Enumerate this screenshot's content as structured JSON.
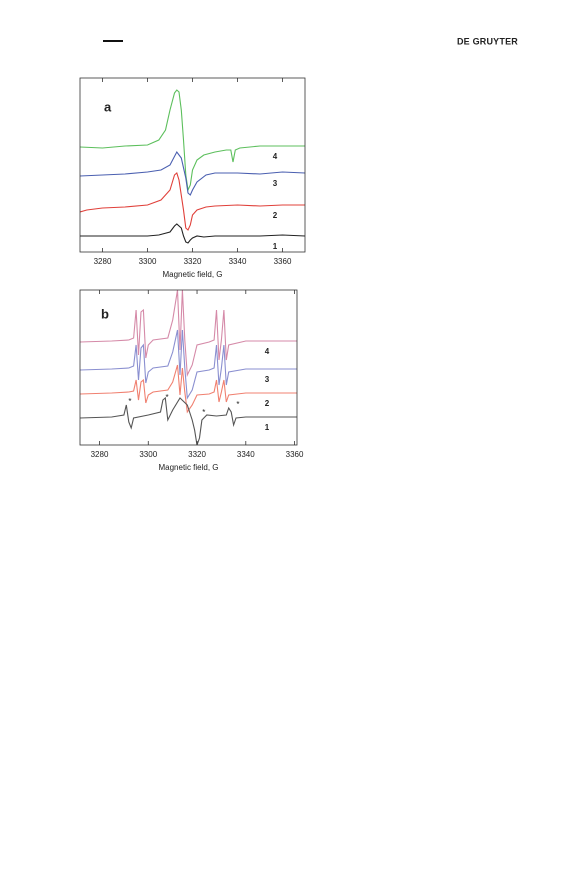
{
  "header": {
    "journal": "DE GRUYTER"
  },
  "chart_data": [
    {
      "type": "line",
      "panel": "a",
      "xlabel": "Magnetic field, G",
      "xlim": [
        3270,
        3370
      ],
      "xticks": [
        3280,
        3300,
        3320,
        3340,
        3360
      ],
      "ylim": [
        0,
        174
      ],
      "series": [
        {
          "name": "4",
          "color": "#5cbf5c",
          "x": [
            3270,
            3280,
            3290,
            3300,
            3305,
            3308,
            3310,
            3312,
            3313,
            3314,
            3315,
            3316,
            3317,
            3318,
            3319,
            3320,
            3322,
            3325,
            3330,
            3335,
            3337,
            3338,
            3339,
            3341,
            3350,
            3360,
            3370
          ],
          "values": [
            105,
            104,
            106,
            107,
            112,
            122,
            142,
            159,
            162,
            160,
            142,
            112,
            77,
            62,
            67,
            82,
            92,
            97,
            100,
            102,
            102,
            90,
            102,
            104,
            106,
            106,
            106
          ]
        },
        {
          "name": "3",
          "color": "#4a5fb0",
          "x": [
            3270,
            3280,
            3290,
            3300,
            3306,
            3310,
            3313,
            3315,
            3317,
            3318,
            3319,
            3320,
            3322,
            3326,
            3330,
            3340,
            3350,
            3360,
            3370
          ],
          "values": [
            76,
            77,
            78,
            80,
            82,
            87,
            100,
            94,
            74,
            59,
            57,
            62,
            70,
            77,
            79,
            79,
            78,
            80,
            79
          ]
        },
        {
          "name": "2",
          "color": "#e0403a",
          "x": [
            3270,
            3273,
            3280,
            3290,
            3300,
            3306,
            3310,
            3312,
            3313,
            3314,
            3316,
            3317,
            3318,
            3319,
            3320,
            3322,
            3326,
            3330,
            3340,
            3350,
            3360,
            3370
          ],
          "values": [
            40,
            42,
            44,
            45,
            47,
            52,
            62,
            77,
            79,
            72,
            42,
            24,
            22,
            27,
            37,
            42,
            45,
            46,
            47,
            46,
            47,
            47
          ]
        },
        {
          "name": "1",
          "color": "#222222",
          "x": [
            3270,
            3280,
            3290,
            3300,
            3305,
            3310,
            3312,
            3313,
            3315,
            3316,
            3317,
            3318,
            3319,
            3320,
            3322,
            3325,
            3330,
            3340,
            3350,
            3360,
            3370
          ],
          "values": [
            16,
            16,
            16,
            16,
            17,
            20,
            26,
            28,
            24,
            16,
            10,
            9,
            12,
            14,
            16,
            15,
            16,
            16,
            16,
            17,
            16
          ]
        }
      ]
    },
    {
      "type": "line",
      "panel": "b",
      "xlabel": "Magnetic field, G",
      "xlim": [
        3272,
        3361
      ],
      "xticks": [
        3280,
        3300,
        3320,
        3340,
        3360
      ],
      "ylim": [
        0,
        155
      ],
      "annotations": [
        {
          "text": "*",
          "x": 3292.5
        },
        {
          "text": "*",
          "x": 3307.7
        },
        {
          "text": "*",
          "x": 3322.8
        },
        {
          "text": "*",
          "x": 3336.8
        }
      ],
      "series": [
        {
          "name": "4",
          "color": "#d58aa8",
          "x": [
            3272,
            3285,
            3292,
            3294,
            3295,
            3296,
            3297,
            3298,
            3299,
            3300,
            3302,
            3308,
            3310,
            3312,
            3313,
            3314,
            3315,
            3316,
            3318,
            3320,
            3325,
            3327,
            3328,
            3329,
            3330,
            3331,
            3332,
            3333,
            3340,
            3361
          ],
          "values": [
            103,
            104,
            105,
            107,
            135,
            90,
            133,
            135,
            87,
            100,
            105,
            107,
            125,
            155,
            95,
            155,
            105,
            70,
            80,
            100,
            103,
            105,
            135,
            85,
            105,
            135,
            85,
            100,
            104,
            104
          ]
        },
        {
          "name": "3",
          "color": "#8a8fd0",
          "x": [
            3272,
            3285,
            3292,
            3294,
            3295,
            3296,
            3297,
            3298,
            3299,
            3300,
            3302,
            3308,
            3310,
            3312,
            3313,
            3314,
            3315,
            3316,
            3318,
            3320,
            3325,
            3327,
            3328,
            3329,
            3330,
            3331,
            3332,
            3333,
            3340,
            3361
          ],
          "values": [
            75,
            76,
            77,
            79,
            100,
            65,
            97,
            100,
            62,
            73,
            77,
            79,
            93,
            115,
            70,
            115,
            77,
            47,
            55,
            73,
            75,
            77,
            100,
            60,
            77,
            100,
            60,
            73,
            76,
            76
          ]
        },
        {
          "name": "2",
          "color": "#f08070",
          "x": [
            3272,
            3285,
            3292,
            3294,
            3295,
            3296,
            3297,
            3298,
            3299,
            3300,
            3302,
            3308,
            3310,
            3312,
            3313,
            3314,
            3315,
            3316,
            3318,
            3320,
            3325,
            3327,
            3328,
            3329,
            3330,
            3331,
            3332,
            3333,
            3340,
            3361
          ],
          "values": [
            51,
            52,
            53,
            54,
            65,
            45,
            63,
            65,
            42,
            50,
            53,
            55,
            63,
            80,
            50,
            77,
            53,
            33,
            40,
            50,
            51,
            53,
            65,
            43,
            53,
            65,
            43,
            50,
            52,
            52
          ]
        },
        {
          "name": "1",
          "color": "#555555",
          "x": [
            3272,
            3285,
            3290,
            3291,
            3292,
            3293,
            3294,
            3300,
            3305,
            3306,
            3307,
            3308,
            3310,
            3313,
            3316,
            3318,
            3319,
            3320,
            3321,
            3322,
            3324,
            3328,
            3332,
            3333,
            3334,
            3335,
            3336,
            3340,
            3361
          ],
          "values": [
            27,
            28,
            30,
            40,
            23,
            17,
            27,
            30,
            33,
            45,
            47,
            25,
            35,
            47,
            40,
            25,
            15,
            0,
            7,
            25,
            30,
            29,
            30,
            37,
            33,
            20,
            27,
            28,
            28
          ]
        }
      ]
    }
  ]
}
